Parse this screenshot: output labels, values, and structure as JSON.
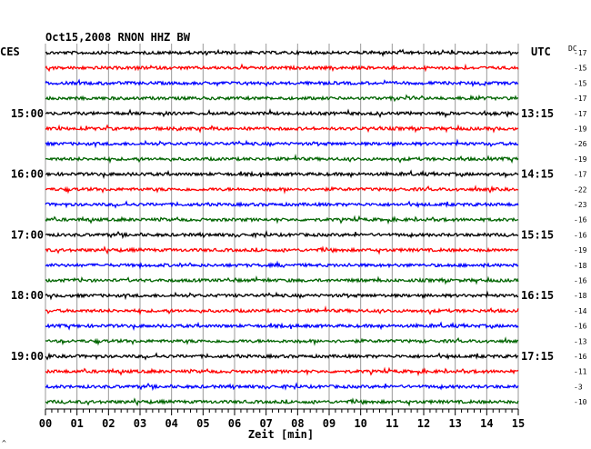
{
  "chart_data": {
    "type": "line",
    "title": "Oct15,2008  RNON HHZ BW",
    "left_tz_label": "CES",
    "right_tz_label": "UTC",
    "dc_label": "DC",
    "xlabel": "Zeit [min]",
    "xlim": [
      0,
      15
    ],
    "x_ticks": [
      "00",
      "01",
      "02",
      "03",
      "04",
      "05",
      "06",
      "07",
      "08",
      "09",
      "10",
      "11",
      "12",
      "13",
      "14",
      "15"
    ],
    "trace_colors": [
      "#000000",
      "#ff0000",
      "#0000ff",
      "#006400"
    ],
    "traces_per_hour": 4,
    "left_hour_labels": [
      "15:00",
      "16:00",
      "17:00",
      "18:00",
      "19:00"
    ],
    "right_hour_labels": [
      "13:15",
      "14:15",
      "15:15",
      "16:15",
      "17:15"
    ],
    "dc_offsets": [
      -17,
      -15,
      -15,
      -17,
      -17,
      -19,
      -26,
      -19,
      -17,
      -22,
      -23,
      -16,
      -16,
      -19,
      -18,
      -16,
      -18,
      -14,
      -16,
      -13,
      -16,
      -11,
      -3,
      -10
    ],
    "corner_mark": "^"
  }
}
